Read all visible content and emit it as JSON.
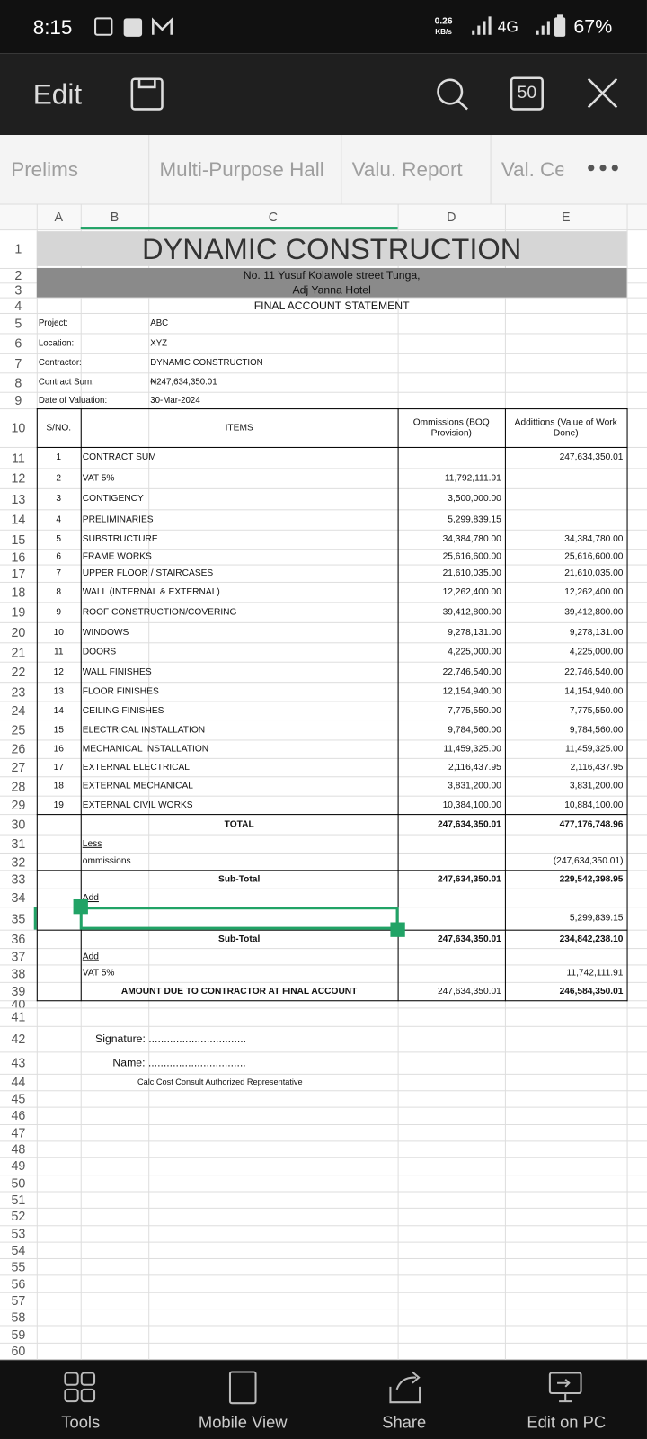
{
  "status_bar": {
    "time": "8:15",
    "speed": "0.26",
    "speed_unit": "KB/s",
    "network": "4G",
    "battery": "67%"
  },
  "toolbar": {
    "edit": "Edit",
    "page_count": "50"
  },
  "sheet_tabs": [
    "Prelims",
    "Multi-Purpose Hall",
    "Valu. Report",
    "Val. Ce"
  ],
  "column_headers": [
    "A",
    "B",
    "C",
    "D",
    "E"
  ],
  "row_numbers": [
    1,
    2,
    3,
    4,
    5,
    6,
    7,
    8,
    9,
    10,
    11,
    12,
    13,
    14,
    15,
    16,
    17,
    18,
    19,
    20,
    21,
    22,
    23,
    24,
    25,
    26,
    27,
    28,
    29,
    30,
    31,
    32,
    33,
    34,
    35,
    36,
    37,
    38,
    39,
    40,
    41,
    42,
    43,
    44,
    45,
    46,
    47,
    48,
    49,
    50,
    51,
    52,
    53,
    54,
    55,
    56,
    57,
    58,
    59,
    60
  ],
  "sheet": {
    "title": "DYNAMIC CONSTRUCTION",
    "address": [
      "No. 11 Yusuf Kolawole street Tunga,",
      "Adj Yanna Hotel"
    ],
    "statement": "FINAL ACCOUNT STATEMENT",
    "info": [
      {
        "label": "Project:",
        "value": "ABC"
      },
      {
        "label": "Location:",
        "value": "XYZ"
      },
      {
        "label": "Contractor:",
        "value": "DYNAMIC CONSTRUCTION"
      },
      {
        "label": "Contract Sum:",
        "value": "₦247,634,350.01"
      },
      {
        "label": "Date of Valuation:",
        "value": "30-Mar-2024"
      }
    ],
    "table_header": [
      "S/NO.",
      "ITEMS",
      "Ommissions (BOQ Provision)",
      "Addittions (Value of Work Done)"
    ],
    "items": [
      {
        "sn": 1,
        "item": "CONTRACT SUM",
        "omission": null,
        "addition": "247,634,350.01"
      },
      {
        "sn": 2,
        "item": "VAT 5%",
        "omission": "11,792,111.91",
        "addition": null
      },
      {
        "sn": 3,
        "item": "CONTIGENCY",
        "omission": "3,500,000.00",
        "addition": null
      },
      {
        "sn": 4,
        "item": "PRELIMINARIES",
        "omission": "5,299,839.15",
        "addition": null
      },
      {
        "sn": 5,
        "item": "SUBSTRUCTURE",
        "omission": "34,384,780.00",
        "addition": "34,384,780.00"
      },
      {
        "sn": 6,
        "item": "FRAME WORKS",
        "omission": "25,616,600.00",
        "addition": "25,616,600.00"
      },
      {
        "sn": 7,
        "item": "UPPER FLOOR / STAIRCASES",
        "omission": "21,610,035.00",
        "addition": "21,610,035.00"
      },
      {
        "sn": 8,
        "item": "WALL (INTERNAL & EXTERNAL)",
        "omission": "12,262,400.00",
        "addition": "12,262,400.00"
      },
      {
        "sn": 9,
        "item": "ROOF CONSTRUCTION/COVERING",
        "omission": "39,412,800.00",
        "addition": "39,412,800.00"
      },
      {
        "sn": 10,
        "item": "WINDOWS",
        "omission": "9,278,131.00",
        "addition": "9,278,131.00"
      },
      {
        "sn": 11,
        "item": "DOORS",
        "omission": "4,225,000.00",
        "addition": "4,225,000.00"
      },
      {
        "sn": 12,
        "item": "WALL FINISHES",
        "omission": "22,746,540.00",
        "addition": "22,746,540.00"
      },
      {
        "sn": 13,
        "item": "FLOOR FINISHES",
        "omission": "12,154,940.00",
        "addition": "14,154,940.00"
      },
      {
        "sn": 14,
        "item": "CEILING FINISHES",
        "omission": "7,775,550.00",
        "addition": "7,775,550.00"
      },
      {
        "sn": 15,
        "item": "ELECTRICAL INSTALLATION",
        "omission": "9,784,560.00",
        "addition": "9,784,560.00"
      },
      {
        "sn": 16,
        "item": "MECHANICAL INSTALLATION",
        "omission": "11,459,325.00",
        "addition": "11,459,325.00"
      },
      {
        "sn": 17,
        "item": "EXTERNAL ELECTRICAL",
        "omission": "2,116,437.95",
        "addition": "2,116,437.95"
      },
      {
        "sn": 18,
        "item": "EXTERNAL MECHANICAL",
        "omission": "3,831,200.00",
        "addition": "3,831,200.00"
      },
      {
        "sn": 19,
        "item": "EXTERNAL CIVIL WORKS",
        "omission": "10,384,100.00",
        "addition": "10,884,100.00"
      }
    ],
    "total": {
      "label": "TOTAL",
      "omission": "247,634,350.01",
      "addition": "477,176,748.96"
    },
    "less": {
      "label": "Less"
    },
    "less_omissions": {
      "label": "ommissions",
      "addition": "(247,634,350.01)"
    },
    "sub_total_1": {
      "label": "Sub-Total",
      "omission": "247,634,350.01",
      "addition": "229,542,398.95"
    },
    "add_1": {
      "label": "Add"
    },
    "add_1_item": {
      "addition": "5,299,839.15"
    },
    "sub_total_2": {
      "label": "Sub-Total",
      "omission": "247,634,350.01",
      "addition": "234,842,238.10"
    },
    "add_2": {
      "label": "Add"
    },
    "vat": {
      "label": "VAT 5%",
      "addition": "11,742,111.91"
    },
    "amount_due": {
      "label": "AMOUNT DUE TO CONTRACTOR AT FINAL ACCOUNT",
      "omission": "247,634,350.01",
      "addition": "246,584,350.01"
    },
    "signature": {
      "signature": "Signature: ................................",
      "name": "Name: ................................",
      "note": "Calc Cost Consult Authorized Representative"
    }
  },
  "bottom_nav": [
    "Tools",
    "Mobile View",
    "Share",
    "Edit on PC"
  ]
}
